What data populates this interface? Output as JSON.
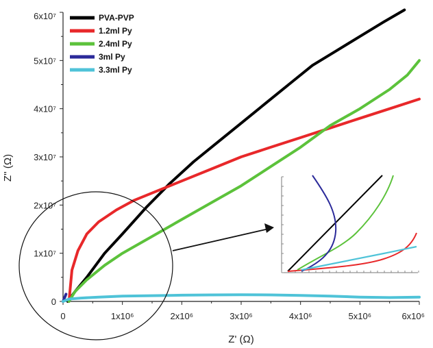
{
  "chart_data": {
    "type": "line",
    "title": "",
    "xlabel": "Z' (Ω)",
    "ylabel": "Z'' (Ω)",
    "xlim": [
      0,
      6000000
    ],
    "ylim": [
      0,
      60000000
    ],
    "x_ticks": [
      {
        "value": 0,
        "label": "0"
      },
      {
        "value": 1000000,
        "label": "1x10⁶"
      },
      {
        "value": 2000000,
        "label": "2x10⁶"
      },
      {
        "value": 3000000,
        "label": "3x10⁶"
      },
      {
        "value": 4000000,
        "label": "4x10⁶"
      },
      {
        "value": 5000000,
        "label": "5x10⁶"
      },
      {
        "value": 6000000,
        "label": "6x10⁶"
      }
    ],
    "y_ticks": [
      {
        "value": 0,
        "label": "0"
      },
      {
        "value": 10000000,
        "label": "1x10⁷"
      },
      {
        "value": 20000000,
        "label": "2x10⁷"
      },
      {
        "value": 30000000,
        "label": "3x10⁷"
      },
      {
        "value": 40000000,
        "label": "4x10⁷"
      },
      {
        "value": 50000000,
        "label": "5x10⁷"
      },
      {
        "value": 60000000,
        "label": "6x10⁷"
      }
    ],
    "grid": false,
    "legend_position": "top-left",
    "series": [
      {
        "name": "PVA-PVP",
        "color": "#000000",
        "x": [
          80000,
          200000,
          400000,
          700000,
          1000000,
          1400000,
          1800000,
          2200000,
          2600000,
          3000000,
          3400000,
          3800000,
          4200000,
          4600000,
          5000000,
          5400000,
          5750000
        ],
        "y": [
          0,
          2000000,
          5000000,
          10000000,
          14000000,
          19500000,
          24500000,
          29000000,
          33000000,
          37000000,
          41000000,
          45000000,
          49000000,
          52000000,
          55000000,
          58000000,
          60500000
        ]
      },
      {
        "name": "1.2ml Py",
        "color": "#e8282a",
        "x": [
          100000,
          150000,
          250000,
          400000,
          600000,
          900000,
          1200000,
          1600000,
          2000000,
          2500000,
          3000000,
          3500000,
          4000000,
          4500000,
          5000000,
          5500000,
          6000000
        ],
        "y": [
          0,
          6500000,
          10500000,
          14000000,
          16500000,
          19000000,
          21000000,
          23000000,
          25000000,
          27500000,
          30000000,
          32000000,
          34000000,
          36000000,
          38000000,
          40000000,
          42000000
        ]
      },
      {
        "name": "2.4ml Py",
        "color": "#5cc23b",
        "x": [
          100000,
          200000,
          400000,
          700000,
          1000000,
          1500000,
          2000000,
          2500000,
          3000000,
          3500000,
          4000000,
          4500000,
          5000000,
          5500000,
          5800000,
          6000000
        ],
        "y": [
          0,
          2000000,
          4500000,
          7500000,
          10000000,
          13500000,
          17000000,
          20500000,
          24000000,
          28000000,
          32000000,
          36500000,
          40000000,
          44000000,
          47000000,
          50000000
        ]
      },
      {
        "name": "3ml Py",
        "color": "#2b2a9a",
        "x": [
          0,
          10000,
          20000,
          30000,
          40000,
          50000
        ],
        "y": [
          0,
          300000,
          600000,
          900000,
          1200000,
          1500000
        ]
      },
      {
        "name": "3.3ml Py",
        "color": "#4fc3d8",
        "x": [
          0,
          100000,
          300000,
          600000,
          1000000,
          1500000,
          2000000,
          2500000,
          3000000,
          3500000,
          4000000,
          4500000,
          5000000,
          5500000,
          6000000
        ],
        "y": [
          0,
          500000,
          700000,
          900000,
          1100000,
          1200000,
          1300000,
          1350000,
          1400000,
          1350000,
          1250000,
          1100000,
          900000,
          800000,
          900000
        ]
      }
    ],
    "annotations": [
      {
        "type": "ellipse",
        "description": "circle highlighting low-Z' region"
      },
      {
        "type": "arrow",
        "description": "arrow pointing from highlighted region to inset"
      }
    ],
    "inset": {
      "description": "zoom of low-Z' region",
      "series_order": [
        "PVA-PVP",
        "1.2ml Py",
        "2.4ml Py",
        "3ml Py",
        "3.3ml Py"
      ]
    }
  }
}
